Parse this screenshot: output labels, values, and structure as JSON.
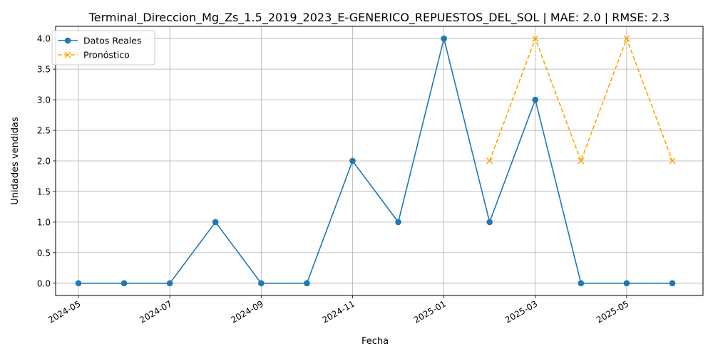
{
  "chart_data": {
    "type": "line",
    "title": "Terminal_Direccion_Mg_Zs_1.5_2019_2023_E-GENERICO_REPUESTOS_DEL_SOL | MAE: 2.0 | RMSE: 2.3",
    "xlabel": "Fecha",
    "ylabel": "Unidades vendidas",
    "ylim": [
      -0.2,
      4.2
    ],
    "yticks": [
      "0.0",
      "0.5",
      "1.0",
      "1.5",
      "2.0",
      "2.5",
      "3.0",
      "3.5",
      "4.0"
    ],
    "xticks": [
      "2024-05",
      "2024-07",
      "2024-09",
      "2024-11",
      "2025-01",
      "2025-03",
      "2025-05"
    ],
    "grid": true,
    "legend_position": "top-left",
    "series": [
      {
        "name": "Datos Reales",
        "color": "#1f77b4",
        "marker": "circle",
        "linestyle": "solid",
        "x": [
          "2024-05",
          "2024-06",
          "2024-07",
          "2024-08",
          "2024-09",
          "2024-10",
          "2024-11",
          "2024-12",
          "2025-01",
          "2025-02",
          "2025-03",
          "2025-04",
          "2025-05",
          "2025-06"
        ],
        "values": [
          0,
          0,
          0,
          1,
          0,
          0,
          2,
          1,
          4,
          1,
          3,
          0,
          0,
          0
        ]
      },
      {
        "name": "Pronóstico",
        "color": "#ffa500",
        "marker": "x",
        "linestyle": "dashed",
        "x": [
          "2025-02",
          "2025-03",
          "2025-04",
          "2025-05",
          "2025-06"
        ],
        "values": [
          2,
          4,
          2,
          4,
          2
        ]
      }
    ]
  }
}
